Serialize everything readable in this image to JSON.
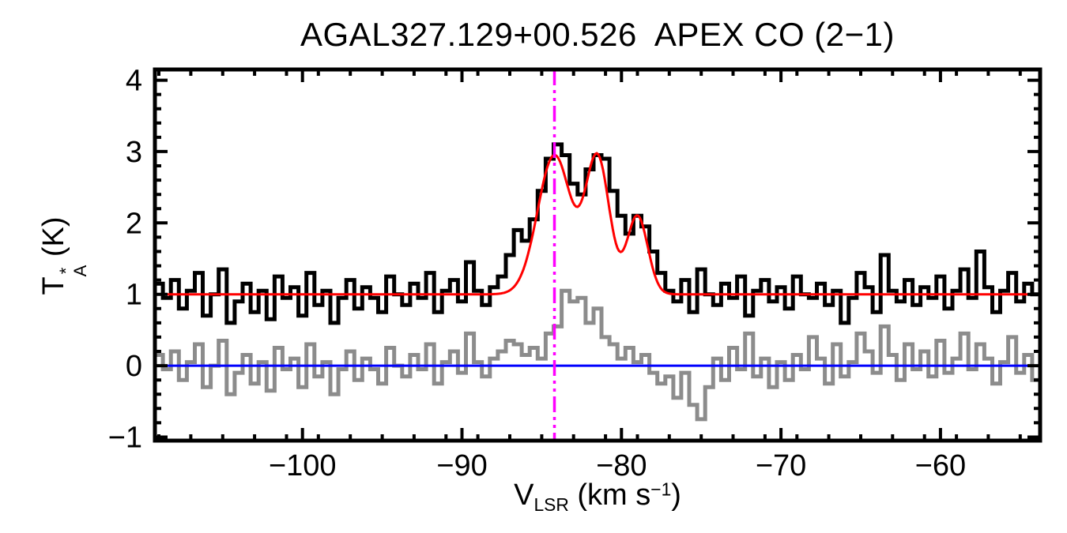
{
  "chart_data": {
    "type": "line",
    "render": "spectrum-histogram",
    "title": "AGAL327.129+00.526  APEX CO (2−1)",
    "xlabel": "V_LSR (km s−1)",
    "ylabel": "T_A* (K)",
    "xlabel_parts": {
      "v": "V",
      "sub": "LSR",
      "mid": " (km s",
      "sup": "−1",
      "end": ")"
    },
    "ylabel_parts": {
      "t": "T",
      "sup": "*",
      "sub": "A",
      "end": " (K)"
    },
    "axes": {
      "xlim": [
        -109.25,
        -53.75
      ],
      "ylim": [
        -1.05,
        4.15
      ],
      "xticks": [
        -100,
        -90,
        -80,
        -70,
        -60
      ],
      "xtick_labels": [
        "−100",
        "−90",
        "−80",
        "−70",
        "−60"
      ],
      "xminor_step": 2,
      "yticks": [
        -1,
        0,
        1,
        2,
        3,
        4
      ],
      "ytick_labels": [
        "−1",
        "0",
        "1",
        "2",
        "3",
        "4"
      ],
      "yminor_step": 0.2,
      "frame_color": "#000000"
    },
    "x_start": -109.0,
    "x_step": 0.5,
    "series": [
      {
        "name": "co21-spectrum",
        "color": "#000000",
        "style": "step",
        "values": [
          1.15,
          0.95,
          1.2,
          0.8,
          1.05,
          1.3,
          0.7,
          1.0,
          1.35,
          0.6,
          0.9,
          1.15,
          0.75,
          1.05,
          0.65,
          1.25,
          0.95,
          1.1,
          0.7,
          1.3,
          0.85,
          1.05,
          0.6,
          0.95,
          1.2,
          0.8,
          1.1,
          0.95,
          0.75,
          1.25,
          1.0,
          0.85,
          1.15,
          0.95,
          1.3,
          0.75,
          1.05,
          1.2,
          0.9,
          1.45,
          1.05,
          0.85,
          1.1,
          1.25,
          1.55,
          1.9,
          1.75,
          2.05,
          2.45,
          2.9,
          3.1,
          2.95,
          2.55,
          2.4,
          2.75,
          2.95,
          2.9,
          2.45,
          2.1,
          1.85,
          2.1,
          1.95,
          1.6,
          1.3,
          1.05,
          0.9,
          1.2,
          0.75,
          1.35,
          1.0,
          0.85,
          1.15,
          0.95,
          1.25,
          0.7,
          1.05,
          1.2,
          0.9,
          1.1,
          0.8,
          1.25,
          1.0,
          0.95,
          1.15,
          0.85,
          1.05,
          0.6,
          0.95,
          1.3,
          1.1,
          0.75,
          1.55,
          1.05,
          0.9,
          1.2,
          0.85,
          1.1,
          0.95,
          1.25,
          0.8,
          1.05,
          1.35,
          0.95,
          1.6,
          1.1,
          0.75,
          1.05,
          1.3,
          0.9,
          1.15,
          1.0
        ]
      },
      {
        "name": "residual-spectrum",
        "color": "#8c8c8c",
        "style": "step",
        "values": [
          0.15,
          -0.05,
          0.2,
          -0.2,
          0.05,
          0.3,
          -0.3,
          0.0,
          0.35,
          -0.4,
          -0.1,
          0.15,
          -0.25,
          0.05,
          -0.35,
          0.25,
          -0.05,
          0.1,
          -0.3,
          0.3,
          -0.15,
          0.05,
          -0.4,
          -0.05,
          0.2,
          -0.2,
          0.1,
          -0.05,
          -0.25,
          0.25,
          0.0,
          -0.15,
          0.15,
          -0.05,
          0.3,
          -0.25,
          0.05,
          0.2,
          -0.1,
          0.45,
          0.05,
          -0.15,
          0.1,
          0.2,
          0.35,
          0.3,
          0.15,
          0.25,
          0.1,
          0.45,
          0.55,
          1.05,
          0.9,
          0.95,
          0.6,
          0.8,
          0.4,
          0.3,
          0.1,
          0.25,
          0.05,
          0.15,
          -0.1,
          -0.25,
          -0.15,
          -0.45,
          -0.1,
          -0.55,
          -0.75,
          -0.3,
          0.1,
          -0.2,
          0.25,
          -0.05,
          0.45,
          -0.15,
          0.1,
          -0.3,
          0.05,
          -0.2,
          0.15,
          -0.05,
          0.4,
          0.1,
          -0.25,
          0.3,
          -0.15,
          0.05,
          0.45,
          0.2,
          -0.1,
          0.55,
          0.15,
          -0.2,
          0.3,
          -0.05,
          0.2,
          -0.15,
          0.35,
          -0.1,
          0.1,
          0.45,
          -0.05,
          0.3,
          0.1,
          -0.25,
          0.05,
          0.4,
          -0.1,
          0.15,
          -0.2
        ]
      }
    ],
    "fit": {
      "name": "gaussian-fit",
      "color": "#ff0000",
      "baseline": 1.0,
      "components": [
        {
          "center": -84.2,
          "amplitude": 1.95,
          "sigma": 1.05
        },
        {
          "center": -81.5,
          "amplitude": 1.9,
          "sigma": 0.75
        },
        {
          "center": -79.0,
          "amplitude": 1.1,
          "sigma": 0.65
        }
      ]
    },
    "reference_lines": [
      {
        "name": "zero-baseline",
        "orientation": "horizontal",
        "value": 0.0,
        "color": "#0000ff",
        "style": "solid"
      },
      {
        "name": "vlsr-marker",
        "orientation": "vertical",
        "value": -84.2,
        "color": "#ff00ff",
        "style": "dash-dot-dot"
      }
    ]
  }
}
